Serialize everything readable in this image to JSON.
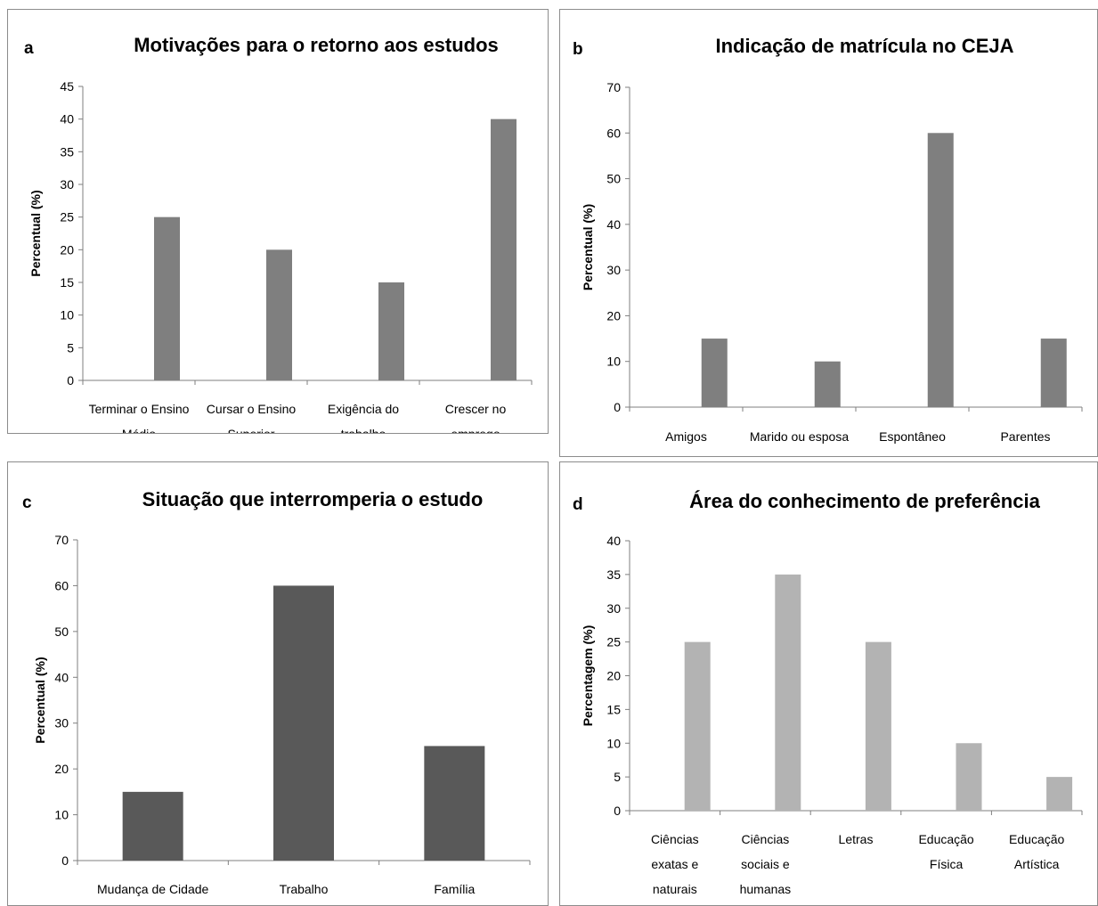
{
  "chart_data": [
    {
      "panel_letter": "a",
      "type": "bar",
      "title": "Motivações para o retorno aos estudos",
      "ylabel": "Percentual (%)",
      "xlabel": "",
      "ylim": [
        0,
        45
      ],
      "yticks": [
        0,
        5,
        10,
        15,
        20,
        25,
        30,
        35,
        40,
        45
      ],
      "categories": [
        [
          "Terminar o Ensino",
          "Médio"
        ],
        [
          "Cursar o Ensino",
          "Superior"
        ],
        [
          "Exigência do",
          "trabalho"
        ],
        [
          "Crescer no",
          "emprego"
        ]
      ],
      "values": [
        25,
        20,
        15,
        40
      ],
      "color": "#7f7f7f",
      "grid": false,
      "legend": "none"
    },
    {
      "panel_letter": "b",
      "type": "bar",
      "title": "Indicação de matrícula no CEJA",
      "ylabel": "Percentual (%)",
      "xlabel": "",
      "ylim": [
        0,
        70
      ],
      "yticks": [
        0,
        10,
        20,
        30,
        40,
        50,
        60,
        70
      ],
      "categories": [
        [
          "Amigos"
        ],
        [
          "Marido ou esposa"
        ],
        [
          "Espontâneo"
        ],
        [
          "Parentes"
        ]
      ],
      "values": [
        15,
        10,
        60,
        15
      ],
      "color": "#7f7f7f",
      "grid": false,
      "legend": "none"
    },
    {
      "panel_letter": "c",
      "type": "bar",
      "title": "Situação que interromperia o estudo",
      "ylabel": "Percentual (%)",
      "xlabel": "",
      "ylim": [
        0,
        70
      ],
      "yticks": [
        0,
        10,
        20,
        30,
        40,
        50,
        60,
        70
      ],
      "categories": [
        [
          "Mudança de Cidade"
        ],
        [
          "Trabalho"
        ],
        [
          "Família"
        ]
      ],
      "values": [
        15,
        60,
        25
      ],
      "color": "#595959",
      "grid": false,
      "legend": "none"
    },
    {
      "panel_letter": "d",
      "type": "bar",
      "title": "Área do conhecimento de preferência",
      "ylabel": "Percentagem (%)",
      "xlabel": "",
      "ylim": [
        0,
        40
      ],
      "yticks": [
        0,
        5,
        10,
        15,
        20,
        25,
        30,
        35,
        40
      ],
      "categories": [
        [
          "Ciências",
          "exatas e",
          "naturais"
        ],
        [
          "Ciências",
          "sociais e",
          "humanas"
        ],
        [
          "Letras"
        ],
        [
          "Educação",
          "Física"
        ],
        [
          "Educação",
          "Artística"
        ]
      ],
      "values": [
        25,
        35,
        25,
        10,
        5
      ],
      "color": "#b3b3b3",
      "grid": false,
      "legend": "none"
    }
  ]
}
